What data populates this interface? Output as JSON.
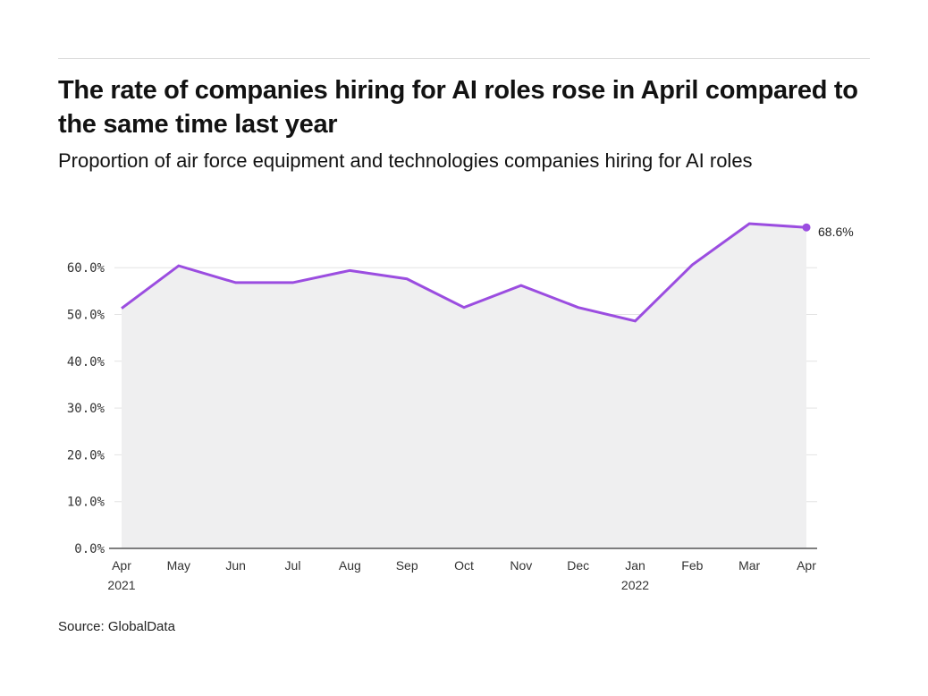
{
  "header": {
    "title": "The rate of companies hiring for AI roles rose in April compared to the same time last year",
    "subtitle": "Proportion of air force equipment and technologies companies hiring for AI roles"
  },
  "footer": {
    "source": "Source: GlobalData"
  },
  "colors": {
    "line": "#9b4de0",
    "area": "#efeff0",
    "grid": "#e3e3e3",
    "axis": "#555555"
  },
  "chart_data": {
    "type": "area",
    "title": "The rate of companies hiring for AI roles rose in April compared to the same time last year",
    "subtitle": "Proportion of air force equipment and technologies companies hiring for AI roles",
    "xlabel": "",
    "ylabel": "",
    "categories": [
      "Apr 2021",
      "May 2021",
      "Jun 2021",
      "Jul 2021",
      "Aug 2021",
      "Sep 2021",
      "Oct 2021",
      "Nov 2021",
      "Dec 2021",
      "Jan 2022",
      "Feb 2022",
      "Mar 2022",
      "Apr 2022"
    ],
    "x_tick_labels": [
      {
        "line1": "Apr",
        "line2": "2021"
      },
      {
        "line1": "May",
        "line2": ""
      },
      {
        "line1": "Jun",
        "line2": ""
      },
      {
        "line1": "Jul",
        "line2": ""
      },
      {
        "line1": "Aug",
        "line2": ""
      },
      {
        "line1": "Sep",
        "line2": ""
      },
      {
        "line1": "Oct",
        "line2": ""
      },
      {
        "line1": "Nov",
        "line2": ""
      },
      {
        "line1": "Dec",
        "line2": ""
      },
      {
        "line1": "Jan",
        "line2": "2022"
      },
      {
        "line1": "Feb",
        "line2": ""
      },
      {
        "line1": "Mar",
        "line2": ""
      },
      {
        "line1": "Apr",
        "line2": ""
      }
    ],
    "series": [
      {
        "name": "Proportion of companies hiring for AI roles",
        "values": [
          51.3,
          60.4,
          56.8,
          56.8,
          59.4,
          57.6,
          51.5,
          56.2,
          51.5,
          48.6,
          60.6,
          69.4,
          68.6
        ]
      }
    ],
    "ylim": [
      0,
      70
    ],
    "y_ticks": [
      0,
      10,
      20,
      30,
      40,
      50,
      60
    ],
    "y_tick_labels": [
      "0.0%",
      "10.0%",
      "20.0%",
      "30.0%",
      "40.0%",
      "50.0%",
      "60.0%"
    ],
    "annotations": [
      {
        "category": "Apr 2022",
        "text": "68.6%"
      }
    ],
    "grid": true,
    "legend": "none",
    "source": "Source: GlobalData"
  }
}
